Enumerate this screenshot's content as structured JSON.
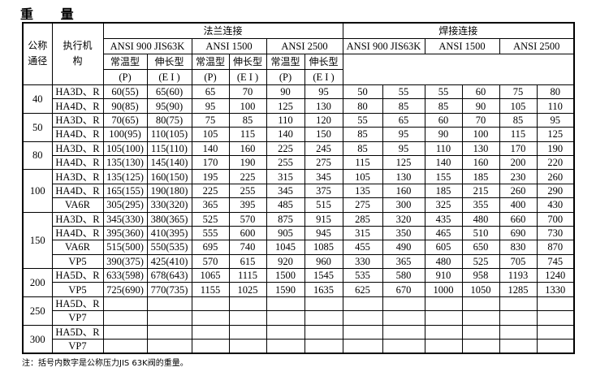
{
  "title": "重 量",
  "header": {
    "nominal_diameter": "公称通径",
    "actuator": "执行机构",
    "groups": [
      "法兰连接",
      "焊接连接"
    ],
    "ratings": [
      "ANSI 900 JIS63K",
      "ANSI 1500",
      "ANSI 2500"
    ],
    "types": [
      "常温型",
      "伸长型"
    ],
    "type_codes": [
      "(P)",
      "(E I )"
    ]
  },
  "rows": [
    {
      "dn": "40",
      "act": "HA3D、R",
      "flange": [
        "60(55)",
        "65(60)",
        "65",
        "70",
        "90",
        "95"
      ],
      "weld": [
        "50",
        "55",
        "55",
        "60",
        "75",
        "80"
      ]
    },
    {
      "dn": "",
      "act": "HA4D、R",
      "flange": [
        "90(85)",
        "95(90)",
        "95",
        "100",
        "125",
        "130"
      ],
      "weld": [
        "80",
        "85",
        "85",
        "90",
        "105",
        "110"
      ]
    },
    {
      "dn": "50",
      "act": "HA3D、R",
      "flange": [
        "70(65)",
        "80(75)",
        "75",
        "85",
        "110",
        "120"
      ],
      "weld": [
        "55",
        "65",
        "60",
        "70",
        "85",
        "95"
      ]
    },
    {
      "dn": "",
      "act": "HA4D、R",
      "flange": [
        "100(95)",
        "110(105)",
        "105",
        "115",
        "140",
        "150"
      ],
      "weld": [
        "85",
        "95",
        "90",
        "100",
        "115",
        "125"
      ]
    },
    {
      "dn": "80",
      "act": "HA3D、R",
      "flange": [
        "105(100)",
        "115(110)",
        "140",
        "160",
        "225",
        "245"
      ],
      "weld": [
        "85",
        "95",
        "110",
        "130",
        "170",
        "190"
      ]
    },
    {
      "dn": "",
      "act": "HA4D、R",
      "flange": [
        "135(130)",
        "145(140)",
        "170",
        "190",
        "255",
        "275"
      ],
      "weld": [
        "115",
        "125",
        "140",
        "160",
        "200",
        "220"
      ]
    },
    {
      "dn": "100",
      "act": "HA3D、R",
      "flange": [
        "135(125)",
        "160(150)",
        "195",
        "225",
        "315",
        "345"
      ],
      "weld": [
        "105",
        "130",
        "155",
        "185",
        "230",
        "260"
      ]
    },
    {
      "dn": "",
      "act": "HA4D、R",
      "flange": [
        "165(155)",
        "190(180)",
        "225",
        "255",
        "345",
        "375"
      ],
      "weld": [
        "135",
        "160",
        "185",
        "215",
        "260",
        "290"
      ]
    },
    {
      "dn": "",
      "act": "VA6R",
      "flange": [
        "305(295)",
        "330(320)",
        "365",
        "395",
        "485",
        "515"
      ],
      "weld": [
        "275",
        "300",
        "325",
        "355",
        "400",
        "430"
      ]
    },
    {
      "dn": "150",
      "act": "HA3D、R",
      "flange": [
        "345(330)",
        "380(365)",
        "525",
        "570",
        "875",
        "915"
      ],
      "weld": [
        "285",
        "320",
        "435",
        "480",
        "660",
        "700"
      ]
    },
    {
      "dn": "",
      "act": "HA4D、R",
      "flange": [
        "395(360)",
        "410(395)",
        "555",
        "600",
        "905",
        "945"
      ],
      "weld": [
        "315",
        "350",
        "465",
        "510",
        "690",
        "730"
      ]
    },
    {
      "dn": "",
      "act": "VA6R",
      "flange": [
        "515(500)",
        "550(535)",
        "695",
        "740",
        "1045",
        "1085"
      ],
      "weld": [
        "455",
        "490",
        "605",
        "650",
        "830",
        "870"
      ]
    },
    {
      "dn": "",
      "act": "VP5",
      "flange": [
        "390(375)",
        "425(410)",
        "570",
        "615",
        "920",
        "960"
      ],
      "weld": [
        "330",
        "365",
        "480",
        "525",
        "705",
        "745"
      ]
    },
    {
      "dn": "200",
      "act": "HA5D、R",
      "flange": [
        "633(598)",
        "678(643)",
        "1065",
        "1115",
        "1500",
        "1545"
      ],
      "weld": [
        "535",
        "580",
        "910",
        "958",
        "1193",
        "1240"
      ]
    },
    {
      "dn": "",
      "act": "VP5",
      "flange": [
        "725(690)",
        "770(735)",
        "1155",
        "1025",
        "1590",
        "1635"
      ],
      "weld": [
        "625",
        "670",
        "1000",
        "1050",
        "1285",
        "1330"
      ]
    },
    {
      "dn": "250",
      "act": "HA5D、R",
      "flange": [
        "",
        "",
        "",
        "",
        "",
        ""
      ],
      "weld": [
        "",
        "",
        "",
        "",
        "",
        ""
      ]
    },
    {
      "dn": "",
      "act": "VP7",
      "flange": [
        "",
        "",
        "",
        "",
        "",
        ""
      ],
      "weld": [
        "",
        "",
        "",
        "",
        "",
        ""
      ]
    },
    {
      "dn": "300",
      "act": "HA5D、R",
      "flange": [
        "",
        "",
        "",
        "",
        "",
        ""
      ],
      "weld": [
        "",
        "",
        "",
        "",
        "",
        ""
      ]
    },
    {
      "dn": "",
      "act": "VP7",
      "flange": [
        "",
        "",
        "",
        "",
        "",
        ""
      ],
      "weld": [
        "",
        "",
        "",
        "",
        "",
        ""
      ]
    }
  ],
  "groups_span": [
    2,
    2,
    2,
    3,
    4,
    2,
    2,
    2
  ],
  "note": "注：括号内数字是公称压力JIS 63K阀的重量。"
}
